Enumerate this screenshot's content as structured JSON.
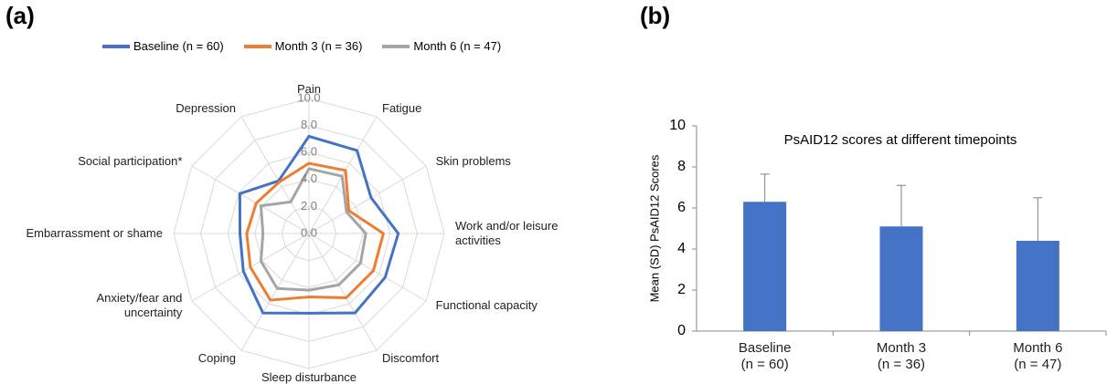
{
  "chart_data": [
    {
      "type": "radar",
      "panel_label": "(a)",
      "categories": [
        "Pain",
        "Fatigue",
        "Skin problems",
        "Work and/or leisure\nactivities",
        "Functional capacity",
        "Discomfort",
        "Sleep disturbance",
        "Coping",
        "Anxiety/fear and\nuncertainty",
        "Embarrassment or shame",
        "Social participation*",
        "Depression"
      ],
      "series": [
        {
          "name": "Baseline (n = 60)",
          "color": "#4472c4",
          "values": [
            7.2,
            7.1,
            5.3,
            6.6,
            6.5,
            6.8,
            5.9,
            6.8,
            5.6,
            5.1,
            5.9,
            4.5
          ]
        },
        {
          "name": "Month 3 (n = 36)",
          "color": "#ed7d31",
          "values": [
            5.2,
            5.4,
            3.4,
            5.5,
            5.5,
            5.5,
            4.7,
            5.7,
            5.0,
            4.6,
            4.5,
            4.4
          ]
        },
        {
          "name": "Month 6 (n = 47)",
          "color": "#a5a5a5",
          "values": [
            4.8,
            4.9,
            3.2,
            4.2,
            4.4,
            4.4,
            4.2,
            4.7,
            4.1,
            3.4,
            4.1,
            2.7
          ]
        }
      ],
      "rlim": [
        0,
        10
      ],
      "rticks": [
        {
          "value": 0,
          "label": "0.0"
        },
        {
          "value": 2,
          "label": "2.0"
        },
        {
          "value": 4,
          "label": "4.0"
        },
        {
          "value": 6,
          "label": "6.0"
        },
        {
          "value": 8,
          "label": "8.0"
        },
        {
          "value": 10,
          "label": "10.0"
        }
      ],
      "grid": true
    },
    {
      "type": "bar",
      "panel_label": "(b)",
      "title": "PsAID12 scores at different timepoints",
      "y_label": "Mean (SD) PsAID12 Scores",
      "categories": [
        "Baseline\n(n = 60)",
        "Month 3\n(n = 36)",
        "Month 6\n(n = 47)"
      ],
      "values": [
        6.3,
        5.1,
        4.4
      ],
      "errors": [
        1.35,
        2.0,
        2.1
      ],
      "color": "#4472c4",
      "ylim": [
        0,
        10
      ],
      "yticks": [
        0,
        2,
        4,
        6,
        8,
        10
      ]
    }
  ]
}
